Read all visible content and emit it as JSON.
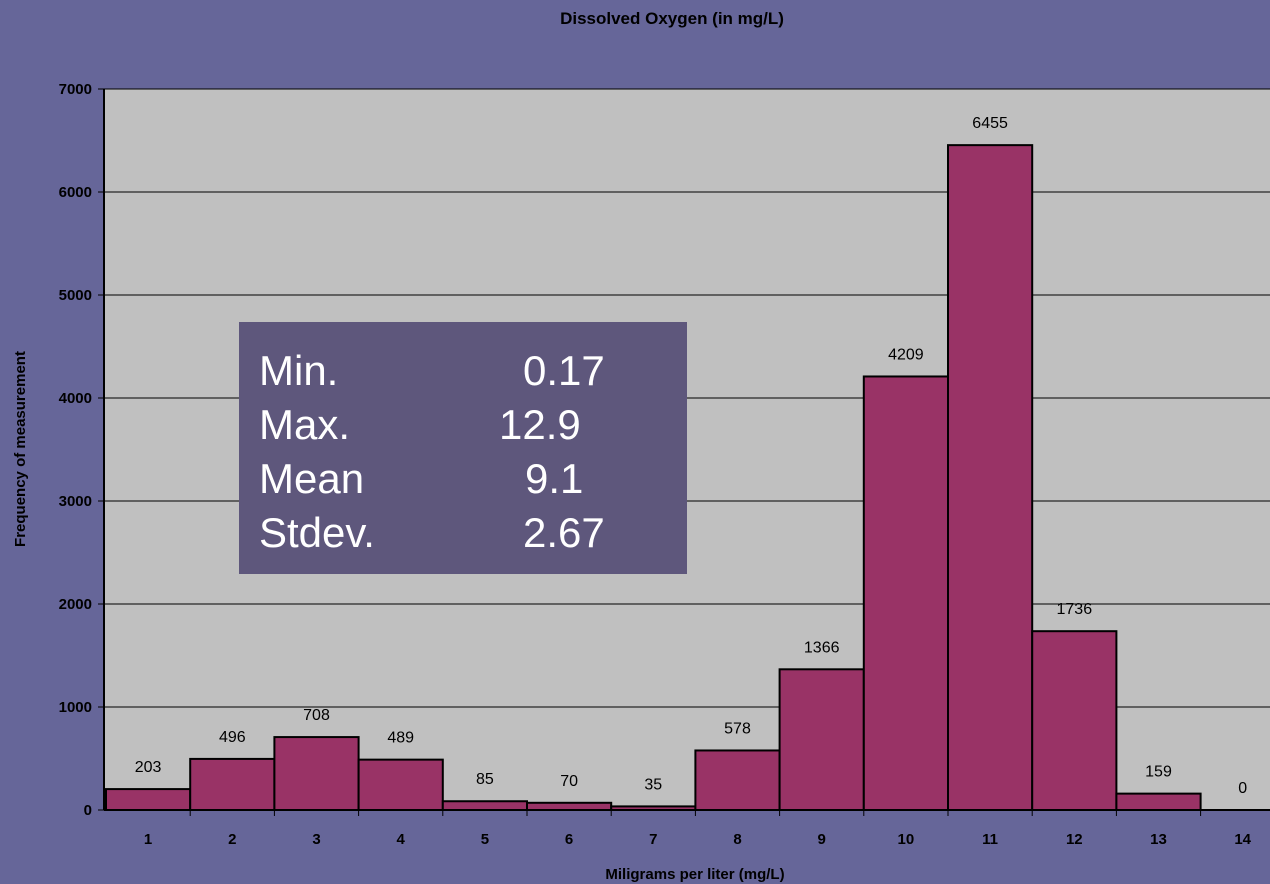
{
  "chart_data": {
    "type": "bar",
    "title": "Dissolved Oxygen (in mg/L)",
    "xlabel": "Miligrams per liter (mg/L)",
    "ylabel": "Frequency of measurement",
    "categories": [
      "1",
      "2",
      "3",
      "4",
      "5",
      "6",
      "7",
      "8",
      "9",
      "10",
      "11",
      "12",
      "13",
      "14"
    ],
    "values": [
      203,
      496,
      708,
      489,
      85,
      70,
      35,
      578,
      1366,
      4209,
      6455,
      1736,
      159,
      0
    ],
    "data_labels": [
      "203",
      "496",
      "708",
      "489",
      "85",
      "70",
      "35",
      "578",
      "1366",
      "4209",
      "6455",
      "1736",
      "159",
      "0"
    ],
    "ylim": [
      0,
      7000
    ],
    "yticks": [
      "0",
      "1000",
      "2000",
      "3000",
      "4000",
      "5000",
      "6000",
      "7000"
    ],
    "grid": true,
    "colors": {
      "bar": "#993366",
      "plot_bg": "#c0c0c0",
      "page_bg": "#666699"
    }
  },
  "stats": [
    {
      "label": "Min.",
      "value": "0.17"
    },
    {
      "label": "Max.",
      "value": "12.9"
    },
    {
      "label": "Mean",
      "value": "9.1"
    },
    {
      "label": "Stdev.",
      "value": "2.67"
    }
  ]
}
